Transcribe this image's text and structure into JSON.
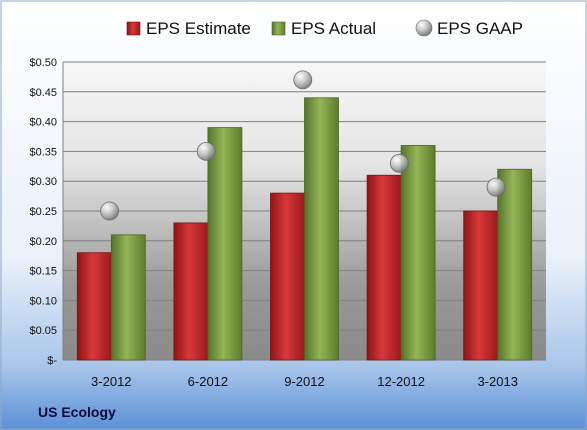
{
  "company_label": "US Ecology",
  "chart_data": {
    "type": "bar",
    "categories": [
      "3-2012",
      "6-2012",
      "9-2012",
      "12-2012",
      "3-2013"
    ],
    "series": [
      {
        "name": "EPS Estimate",
        "kind": "bar",
        "color": "#c0282a",
        "values": [
          0.18,
          0.23,
          0.28,
          0.31,
          0.25
        ]
      },
      {
        "name": "EPS Actual",
        "kind": "bar",
        "color": "#7a9c3c",
        "values": [
          0.21,
          0.39,
          0.44,
          0.36,
          0.32
        ]
      },
      {
        "name": "EPS GAAP",
        "kind": "marker",
        "color": "#b0b0b0",
        "values": [
          0.25,
          0.35,
          0.47,
          0.33,
          0.29
        ]
      }
    ],
    "ylim": [
      0,
      0.5
    ],
    "yticks": [
      0,
      0.05,
      0.1,
      0.15,
      0.2,
      0.25,
      0.3,
      0.35,
      0.4,
      0.45,
      0.5
    ],
    "ytick_labels": [
      "$-",
      "$0.05",
      "$0.10",
      "$0.15",
      "$0.20",
      "$0.25",
      "$0.30",
      "$0.35",
      "$0.40",
      "$0.45",
      "$0.50"
    ],
    "grid": true,
    "legend_position": "top"
  }
}
